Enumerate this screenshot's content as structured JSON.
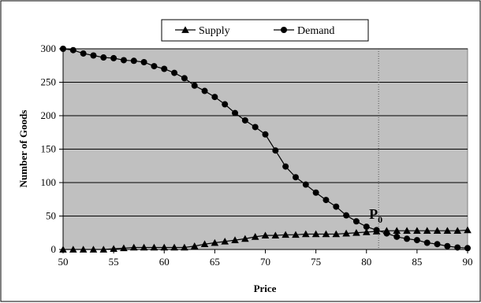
{
  "chart_data": {
    "type": "line",
    "xlabel": "Price",
    "ylabel": "Number of Goods",
    "xlim": [
      50,
      90
    ],
    "ylim": [
      0,
      300
    ],
    "x_ticks": [
      50,
      55,
      60,
      65,
      70,
      75,
      80,
      85,
      90
    ],
    "y_ticks": [
      0,
      50,
      100,
      150,
      200,
      250,
      300
    ],
    "grid": "horizontal",
    "legend_position": "top",
    "plot_background": "#C0C0C0",
    "annotation": {
      "text": "P",
      "subscript": "0",
      "x": 81.2
    },
    "x": [
      50,
      51,
      52,
      53,
      54,
      55,
      56,
      57,
      58,
      59,
      60,
      61,
      62,
      63,
      64,
      65,
      66,
      67,
      68,
      69,
      70,
      71,
      72,
      73,
      74,
      75,
      76,
      77,
      78,
      79,
      80,
      81,
      82,
      83,
      84,
      85,
      86,
      87,
      88,
      89,
      90
    ],
    "series": [
      {
        "name": "Supply",
        "marker": "triangle",
        "color": "#000000",
        "values": [
          0,
          0,
          0,
          0,
          0,
          1,
          2,
          3,
          3,
          3,
          3,
          3,
          3,
          5,
          8,
          10,
          12,
          14,
          16,
          19,
          21,
          21,
          22,
          22,
          23,
          23,
          23,
          23,
          24,
          25,
          26,
          27,
          28,
          28,
          28,
          28,
          28,
          28,
          28,
          28,
          29
        ]
      },
      {
        "name": "Demand",
        "marker": "circle",
        "color": "#000000",
        "values": [
          300,
          298,
          293,
          290,
          287,
          286,
          283,
          282,
          280,
          274,
          270,
          264,
          256,
          245,
          237,
          228,
          217,
          204,
          193,
          183,
          172,
          148,
          124,
          108,
          97,
          85,
          74,
          64,
          51,
          42,
          34,
          29,
          24,
          19,
          16,
          14,
          10,
          8,
          5,
          3,
          2
        ]
      }
    ]
  }
}
